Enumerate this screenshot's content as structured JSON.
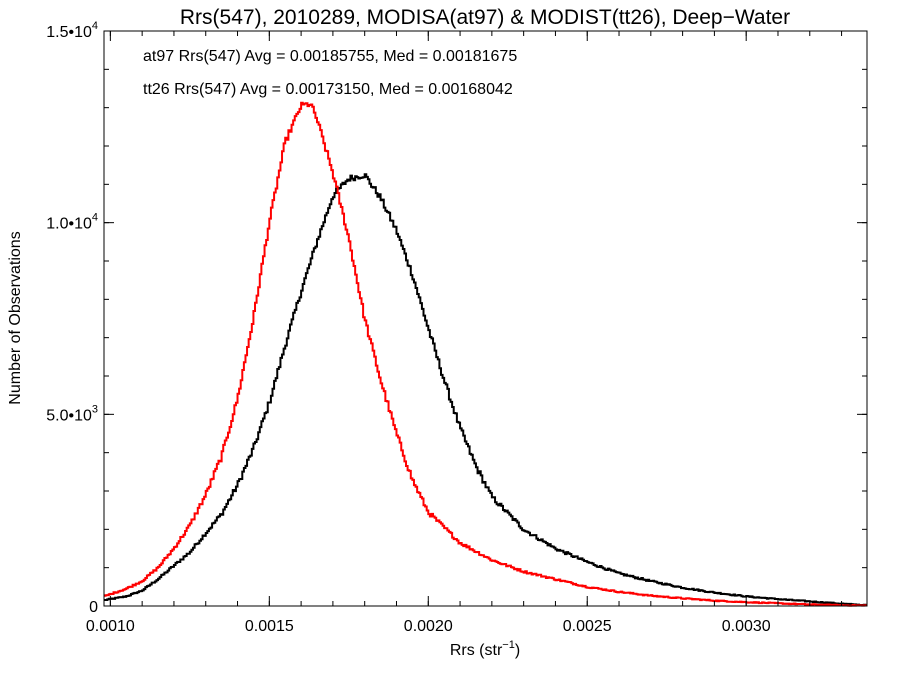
{
  "chart_data": {
    "type": "line",
    "style": "step-histogram",
    "title": "Rrs(547), 2010289, MODISA(at97) & MODIST(tt26), Deep−Water",
    "xlabel_base": "Rrs (str",
    "xlabel_sup": "−1",
    "xlabel_end": ")",
    "ylabel": "Number of Observations",
    "xlim": [
      0.00098,
      0.00338
    ],
    "ylim": [
      0,
      15000
    ],
    "xticks": [
      {
        "value": 0.001,
        "label": "0.0010"
      },
      {
        "value": 0.0015,
        "label": "0.0015"
      },
      {
        "value": 0.002,
        "label": "0.0020"
      },
      {
        "value": 0.0025,
        "label": "0.0025"
      },
      {
        "value": 0.003,
        "label": "0.0030"
      }
    ],
    "yticks": [
      {
        "value": 0,
        "base": "0",
        "sup": ""
      },
      {
        "value": 5000,
        "base": "5.0•10",
        "sup": "3"
      },
      {
        "value": 10000,
        "base": "1.0•10",
        "sup": "4"
      },
      {
        "value": 15000,
        "base": "1.5•10",
        "sup": "4"
      }
    ],
    "x_minor_step": 0.0001,
    "y_minor_step": 1000,
    "grid": false,
    "annotations": [
      {
        "text": "at97 Rrs(547) Avg = 0.00185755, Med = 0.00181675",
        "color": "#000000"
      },
      {
        "text": "tt26 Rrs(547) Avg = 0.00173150, Med = 0.00168042",
        "color": "#ff0000"
      }
    ],
    "series": [
      {
        "label": "at97",
        "color": "#000000",
        "x": [
          0.00098,
          0.00105,
          0.0011,
          0.00115,
          0.0012,
          0.00125,
          0.0013,
          0.00135,
          0.0014,
          0.00145,
          0.0015,
          0.00155,
          0.0016,
          0.00165,
          0.0017,
          0.00175,
          0.0018,
          0.00185,
          0.0019,
          0.00195,
          0.002,
          0.00205,
          0.0021,
          0.00215,
          0.0022,
          0.0023,
          0.0024,
          0.0025,
          0.0026,
          0.0027,
          0.0028,
          0.0029,
          0.003,
          0.0031,
          0.0032,
          0.0033,
          0.00338
        ],
        "y": [
          150,
          250,
          400,
          700,
          1050,
          1400,
          1900,
          2400,
          3150,
          4100,
          5300,
          6800,
          8200,
          9500,
          10700,
          11150,
          11250,
          10650,
          9800,
          8650,
          7250,
          5900,
          4650,
          3650,
          2850,
          2000,
          1500,
          1150,
          850,
          650,
          480,
          350,
          250,
          180,
          120,
          60,
          20
        ]
      },
      {
        "label": "tt26",
        "color": "#ff0000",
        "x": [
          0.00098,
          0.00105,
          0.0011,
          0.00115,
          0.0012,
          0.00125,
          0.0013,
          0.00135,
          0.0014,
          0.00145,
          0.0015,
          0.00155,
          0.0016,
          0.00163,
          0.00165,
          0.0017,
          0.00175,
          0.0018,
          0.00185,
          0.0019,
          0.00195,
          0.002,
          0.0021,
          0.0022,
          0.0023,
          0.0024,
          0.0025,
          0.0026,
          0.0027,
          0.0028,
          0.0029,
          0.003,
          0.0031,
          0.0032,
          0.0033,
          0.00338
        ],
        "y": [
          250,
          450,
          650,
          1000,
          1500,
          2100,
          2900,
          3900,
          5400,
          7500,
          10000,
          12100,
          13050,
          13100,
          12700,
          11300,
          9600,
          7500,
          5900,
          4500,
          3300,
          2450,
          1650,
          1200,
          900,
          700,
          500,
          370,
          270,
          200,
          140,
          100,
          70,
          40,
          20,
          10
        ]
      }
    ]
  }
}
